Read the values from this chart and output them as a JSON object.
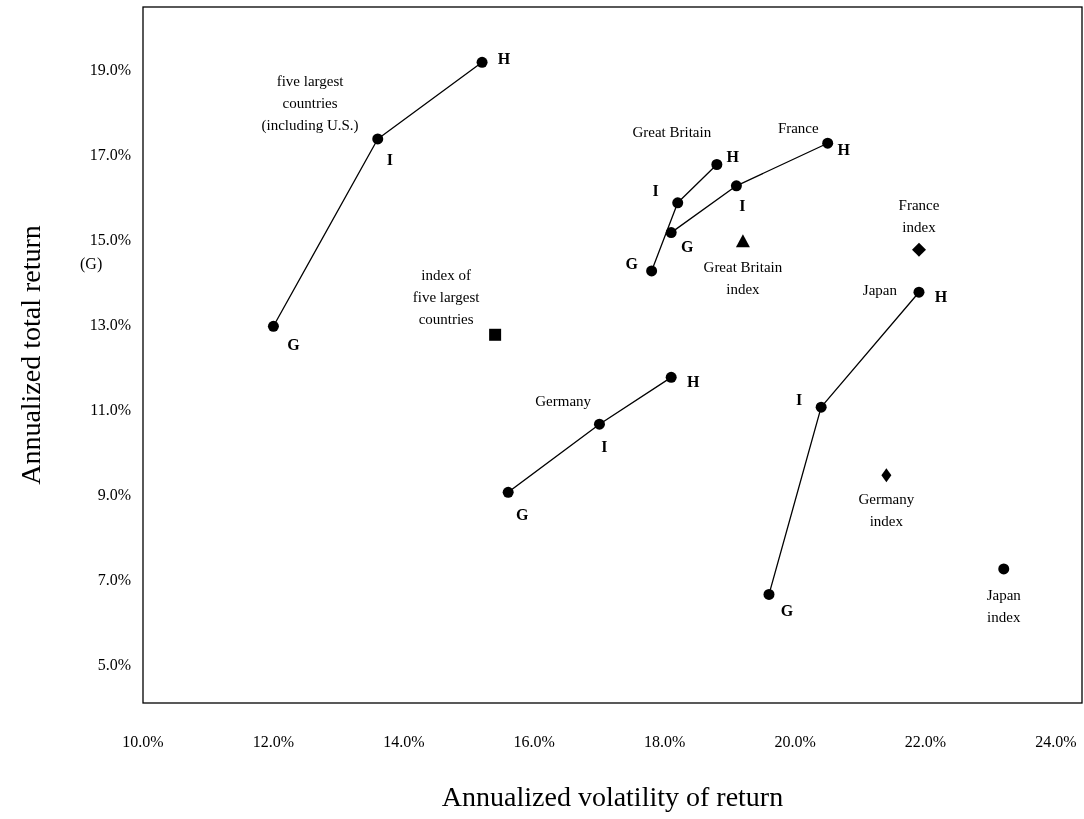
{
  "chart_data": {
    "type": "line",
    "xlabel": "Annualized volatility of return",
    "ylabel": "Annualized total return",
    "xlim": [
      10,
      24.4
    ],
    "ylim": [
      4.15,
      20.5
    ],
    "xticks": [
      {
        "value": 10,
        "label": "10.0%"
      },
      {
        "value": 12,
        "label": "12.0%"
      },
      {
        "value": 14,
        "label": "14.0%"
      },
      {
        "value": 16,
        "label": "16.0%"
      },
      {
        "value": 18,
        "label": "18.0%"
      },
      {
        "value": 20,
        "label": "20.0%"
      },
      {
        "value": 22,
        "label": "22.0%"
      },
      {
        "value": 24,
        "label": "24.0%"
      }
    ],
    "yticks": [
      {
        "value": 5,
        "label": "5.0%"
      },
      {
        "value": 7,
        "label": "7.0%"
      },
      {
        "value": 9,
        "label": "9.0%"
      },
      {
        "value": 11,
        "label": "11.0%"
      },
      {
        "value": 13,
        "label": "13.0%"
      },
      {
        "value": 15,
        "label": "15.0%"
      },
      {
        "value": 17,
        "label": "17.0%"
      },
      {
        "value": 19,
        "label": "19.0%"
      }
    ],
    "grid": false,
    "marker": "circle",
    "line_style": "solid",
    "annotations": [
      "(G)"
    ],
    "series": [
      {
        "name": "five largest\ncountries\n(including U.S.)",
        "color": "#000000",
        "x": [
          12.0,
          13.6,
          15.2
        ],
        "values": [
          13.0,
          17.4,
          19.2
        ],
        "value_labels": [
          "G",
          "I",
          "H"
        ]
      },
      {
        "name": "Great Britain",
        "color": "#000000",
        "x": [
          17.8,
          18.2,
          18.8
        ],
        "values": [
          14.3,
          15.9,
          16.8
        ],
        "value_labels": [
          "G",
          "I",
          "H"
        ]
      },
      {
        "name": "France",
        "color": "#000000",
        "x": [
          18.1,
          19.1,
          20.5
        ],
        "values": [
          15.2,
          16.3,
          17.3
        ],
        "value_labels": [
          "G",
          "I",
          "H"
        ]
      },
      {
        "name": "Japan",
        "color": "#000000",
        "x": [
          19.6,
          20.4,
          21.9
        ],
        "values": [
          6.7,
          11.1,
          13.8
        ],
        "value_labels": [
          "G",
          "I",
          "H"
        ]
      },
      {
        "name": "Germany",
        "color": "#000000",
        "x": [
          15.6,
          17.0,
          18.1
        ],
        "values": [
          9.1,
          10.7,
          11.8
        ],
        "value_labels": [
          "G",
          "I",
          "H"
        ]
      },
      {
        "name": "index of\nfive largest\ncountries",
        "type": "scatter",
        "marker": "square",
        "color": "#000000",
        "x": [
          15.4
        ],
        "values": [
          12.8
        ]
      },
      {
        "name": "Great Britain\nindex",
        "type": "scatter",
        "marker": "triangle",
        "color": "#000000",
        "x": [
          19.2
        ],
        "values": [
          15.0
        ]
      },
      {
        "name": "France\nindex",
        "type": "scatter",
        "marker": "diamond",
        "color": "#000000",
        "x": [
          21.9
        ],
        "values": [
          14.8
        ]
      },
      {
        "name": "Germany\nindex",
        "type": "scatter",
        "marker": "diamond",
        "color": "#000000",
        "x": [
          21.4
        ],
        "values": [
          9.5
        ]
      },
      {
        "name": "Japan\nindex",
        "type": "scatter",
        "marker": "circle",
        "color": "#000000",
        "x": [
          23.2
        ],
        "values": [
          7.3
        ]
      }
    ]
  }
}
